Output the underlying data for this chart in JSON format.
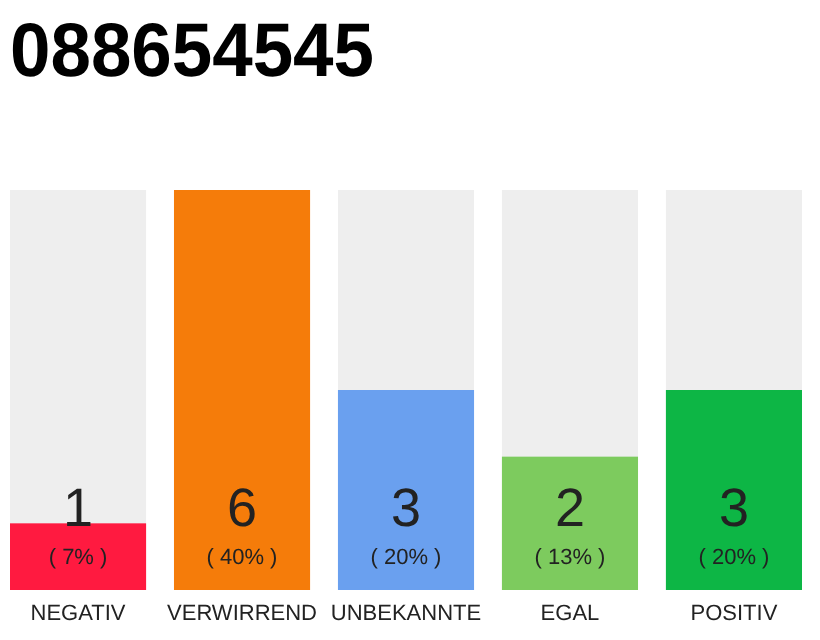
{
  "chart_data": {
    "type": "bar",
    "title": "088654545",
    "categories": [
      "NEGATIV",
      "VERWIRREND",
      "UNBEKANNTE",
      "EGAL",
      "POSITIV"
    ],
    "values": [
      1,
      6,
      3,
      2,
      3
    ],
    "colors": [
      "#ff1a40",
      "#f57c0a",
      "#6aa0ef",
      "#7dcb5e",
      "#0db645"
    ],
    "ylim": [
      0,
      6
    ],
    "data_labels": true,
    "annotations": [
      "( 7% )",
      "( 40% )",
      "( 20% )",
      "( 13% )",
      "( 20% )"
    ]
  }
}
